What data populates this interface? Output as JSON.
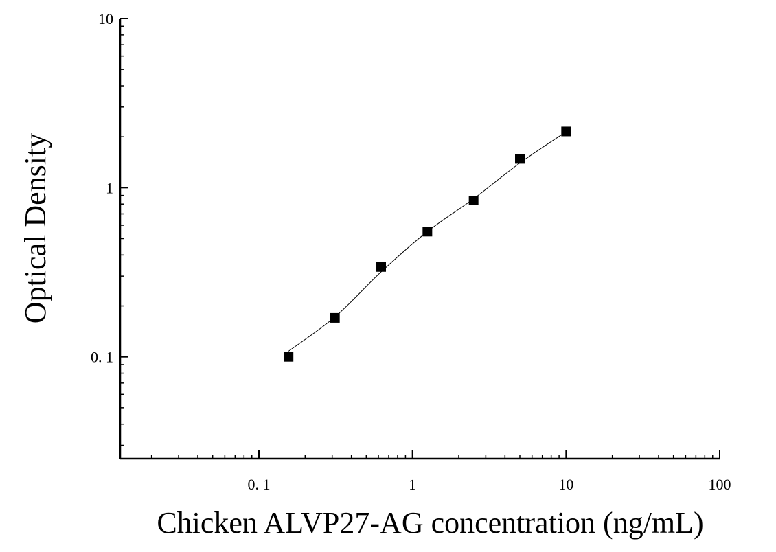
{
  "chart_data": {
    "type": "scatter",
    "title": "",
    "xlabel": "Chicken ALVP27-AG concentration (ng/mL)",
    "ylabel": "Optical Density",
    "x_scale": "log",
    "y_scale": "log",
    "xlim": [
      0.0125,
      100
    ],
    "ylim": [
      0.025,
      10
    ],
    "x_ticks": [
      0.1,
      1,
      10,
      100
    ],
    "x_tick_labels": [
      "0. 1",
      "1",
      "10",
      "100"
    ],
    "y_ticks": [
      0.1,
      1,
      10
    ],
    "y_tick_labels": [
      "0. 1",
      "1",
      "10"
    ],
    "grid": false,
    "legend": "none",
    "series": [
      {
        "marker": "square",
        "color": "#000000",
        "x": [
          0.156,
          0.3125,
          0.625,
          1.25,
          2.5,
          5,
          10
        ],
        "y": [
          0.1,
          0.17,
          0.34,
          0.55,
          0.84,
          1.48,
          2.15
        ]
      }
    ],
    "fit_curve": {
      "color": "#000000",
      "x": [
        0.156,
        0.3125,
        0.625,
        1.25,
        2.5,
        5,
        10
      ],
      "y": [
        0.108,
        0.172,
        0.318,
        0.55,
        0.86,
        1.4,
        2.14
      ]
    }
  }
}
